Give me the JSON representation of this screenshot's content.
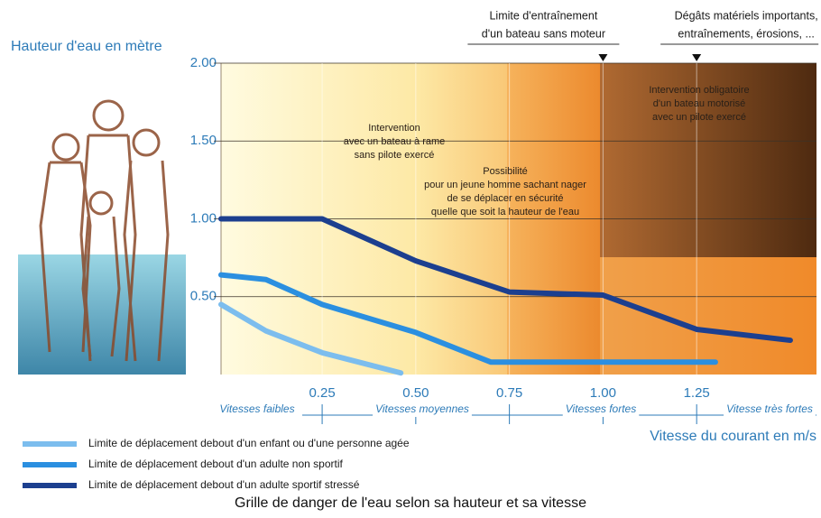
{
  "chart_data": {
    "type": "line",
    "title": "Grille de danger de l'eau selon sa hauteur et sa vitesse",
    "y_label": "Hauteur d'eau en mètre",
    "x_label": "Vitesse du courant en m/s",
    "xlim": [
      -0.02,
      1.57
    ],
    "ylim": [
      0,
      2
    ],
    "xticks": [
      {
        "value": 0.25,
        "label": "0.25"
      },
      {
        "value": 0.5,
        "label": "0.50"
      },
      {
        "value": 0.75,
        "label": "0.75"
      },
      {
        "value": 1,
        "label": "1.00"
      },
      {
        "value": 1.25,
        "label": "1.25"
      }
    ],
    "yticks": [
      {
        "value": 0.5,
        "label": "0.50"
      },
      {
        "value": 1,
        "label": "1.00"
      },
      {
        "value": 1.5,
        "label": "1.50"
      },
      {
        "value": 2,
        "label": "2.00"
      }
    ],
    "grid": true,
    "speed_zones": [
      "Vitesses faibles",
      "Vitesses moyennes",
      "Vitesses fortes",
      "Vitesse très fortes"
    ],
    "markers": [
      {
        "x": 1,
        "lines": [
          "Limite d'entraînement",
          "d'un bateau sans moteur"
        ]
      },
      {
        "x": 1.25,
        "lines": [
          "Dégâts matériels importants,",
          "entraînements, érosions, ..."
        ]
      }
    ],
    "annotations": [
      {
        "lines": [
          "Intervention",
          "avec un bateau à rame",
          "sans pilote exercé"
        ]
      },
      {
        "lines": [
          "Possibilité",
          "pour un jeune homme sachant nager",
          "de se déplacer en sécurité",
          "quelle que soit la hauteur de l'eau"
        ]
      },
      {
        "lines": [
          "Intervention obligatoire",
          "d'un bateau motorisé",
          "avec un pilote exercé"
        ]
      }
    ],
    "series": [
      {
        "name": "Limite de déplacement debout d'un enfant ou d'une personne agée",
        "color": "#7cbdee",
        "x": [
          -0.02,
          0.1,
          0.25,
          0.46
        ],
        "values": [
          0.45,
          0.28,
          0.14,
          0.01
        ]
      },
      {
        "name": "Limite de déplacement debout d'un adulte non sportif",
        "color": "#2b8fe0",
        "x": [
          -0.02,
          0.1,
          0.25,
          0.5,
          0.7,
          1.3
        ],
        "values": [
          0.64,
          0.61,
          0.45,
          0.27,
          0.08,
          0.08
        ]
      },
      {
        "name": "Limite de déplacement debout d'un adulte sportif stressé",
        "color": "#1c3f8f",
        "x": [
          -0.02,
          0.25,
          0.5,
          0.75,
          1,
          1.25,
          1.5
        ],
        "values": [
          1,
          1,
          0.73,
          0.53,
          0.51,
          0.29,
          0.22
        ]
      }
    ]
  }
}
